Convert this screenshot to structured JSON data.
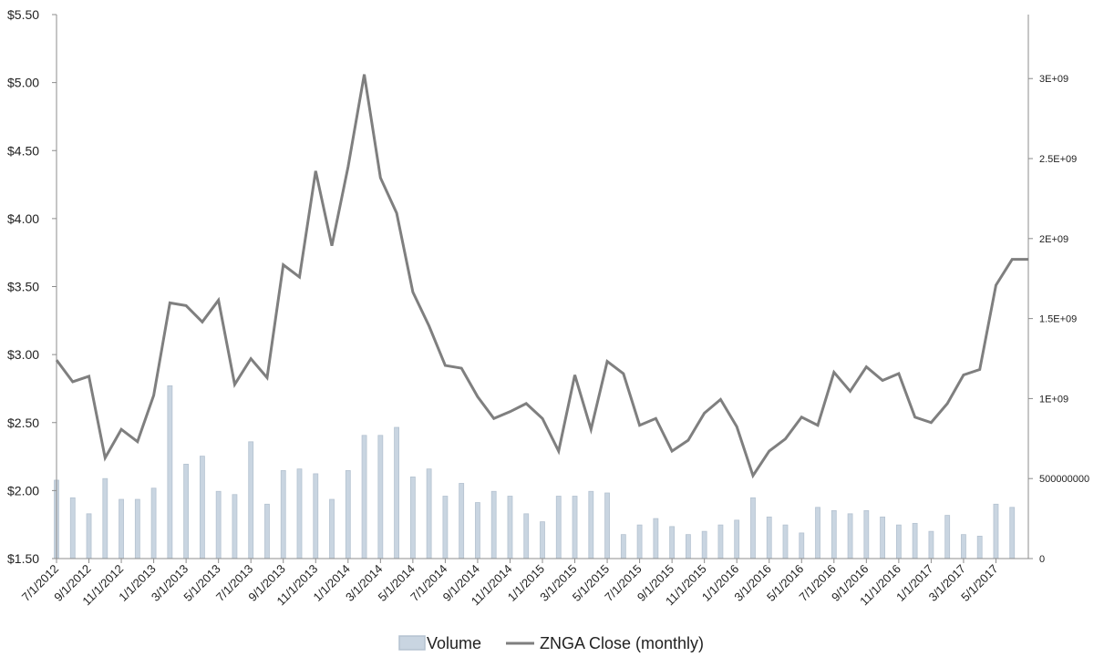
{
  "chart_data": {
    "type": "bar+line",
    "colors": {
      "volume_fill": "#c9d5e1",
      "volume_stroke": "#b4c2d0",
      "close_line": "#7f7f7f",
      "axis": "#8c8c8c"
    },
    "x": [
      "7/1/2012",
      "8/1/2012",
      "9/1/2012",
      "10/1/2012",
      "11/1/2012",
      "12/1/2012",
      "1/1/2013",
      "2/1/2013",
      "3/1/2013",
      "4/1/2013",
      "5/1/2013",
      "6/1/2013",
      "7/1/2013",
      "8/1/2013",
      "9/1/2013",
      "10/1/2013",
      "11/1/2013",
      "12/1/2013",
      "1/1/2014",
      "2/1/2014",
      "3/1/2014",
      "4/1/2014",
      "5/1/2014",
      "6/1/2014",
      "7/1/2014",
      "8/1/2014",
      "9/1/2014",
      "10/1/2014",
      "11/1/2014",
      "12/1/2014",
      "1/1/2015",
      "2/1/2015",
      "3/1/2015",
      "4/1/2015",
      "5/1/2015",
      "6/1/2015",
      "7/1/2015",
      "8/1/2015",
      "9/1/2015",
      "10/1/2015",
      "11/1/2015",
      "12/1/2015",
      "1/1/2016",
      "2/1/2016",
      "3/1/2016",
      "4/1/2016",
      "5/1/2016",
      "6/1/2016",
      "7/1/2016",
      "8/1/2016",
      "9/1/2016",
      "10/1/2016",
      "11/1/2016",
      "12/1/2016",
      "1/1/2017",
      "2/1/2017",
      "3/1/2017",
      "4/1/2017",
      "5/1/2017",
      "6/1/2017",
      "7/1/2017"
    ],
    "x_tick_labels": [
      "7/1/2012",
      "9/1/2012",
      "11/1/2012",
      "1/1/2013",
      "3/1/2013",
      "5/1/2013",
      "7/1/2013",
      "9/1/2013",
      "11/1/2013",
      "1/1/2014",
      "3/1/2014",
      "5/1/2014",
      "7/1/2014",
      "9/1/2014",
      "11/1/2014",
      "1/1/2015",
      "3/1/2015",
      "5/1/2015",
      "7/1/2015",
      "9/1/2015",
      "11/1/2015",
      "1/1/2016",
      "3/1/2016",
      "5/1/2016",
      "7/1/2016",
      "9/1/2016",
      "11/1/2016",
      "1/1/2017",
      "3/1/2017",
      "5/1/2017"
    ],
    "series": [
      {
        "name": "Volume",
        "type": "bar",
        "axis": "right",
        "values": [
          490000000,
          380000000,
          280000000,
          500000000,
          370000000,
          370000000,
          440000000,
          1080000000,
          590000000,
          640000000,
          420000000,
          400000000,
          730000000,
          340000000,
          550000000,
          560000000,
          530000000,
          370000000,
          550000000,
          770000000,
          770000000,
          820000000,
          510000000,
          560000000,
          390000000,
          470000000,
          350000000,
          420000000,
          390000000,
          280000000,
          230000000,
          390000000,
          390000000,
          420000000,
          410000000,
          150000000,
          210000000,
          250000000,
          200000000,
          150000000,
          170000000,
          210000000,
          240000000,
          380000000,
          260000000,
          210000000,
          160000000,
          320000000,
          300000000,
          280000000,
          300000000,
          260000000,
          210000000,
          220000000,
          170000000,
          270000000,
          150000000,
          140000000,
          340000000,
          320000000,
          0
        ]
      },
      {
        "name": "ZNGA Close (monthly)",
        "type": "line",
        "axis": "left",
        "values": [
          2.96,
          2.8,
          2.84,
          2.24,
          2.45,
          2.36,
          2.7,
          3.38,
          3.36,
          3.24,
          3.4,
          2.78,
          2.97,
          2.83,
          3.66,
          3.57,
          4.35,
          3.8,
          4.38,
          5.06,
          4.3,
          4.04,
          3.46,
          3.21,
          2.92,
          2.9,
          2.69,
          2.53,
          2.58,
          2.64,
          2.53,
          2.29,
          2.85,
          2.45,
          2.95,
          2.86,
          2.48,
          2.53,
          2.29,
          2.37,
          2.57,
          2.67,
          2.47,
          2.11,
          2.29,
          2.38,
          2.54,
          2.48,
          2.87,
          2.73,
          2.91,
          2.81,
          2.86,
          2.54,
          2.5,
          2.64,
          2.85,
          2.89,
          3.51,
          3.7,
          3.7
        ]
      }
    ],
    "y_left": {
      "ylim": [
        1.5,
        5.5
      ],
      "tick_values": [
        1.5,
        2.0,
        2.5,
        3.0,
        3.5,
        4.0,
        4.5,
        5.0,
        5.5
      ],
      "tick_labels": [
        "$1.50",
        "$2.00",
        "$2.50",
        "$3.00",
        "$3.50",
        "$4.00",
        "$4.50",
        "$5.00",
        "$5.50"
      ]
    },
    "y_right": {
      "ylim": [
        0,
        3400000000
      ],
      "tick_values": [
        0,
        500000000,
        1000000000,
        1500000000,
        2000000000,
        2500000000,
        3000000000
      ],
      "tick_labels": [
        "0",
        "500000000",
        "1E+09",
        "1.5E+09",
        "2E+09",
        "2.5E+09",
        "3E+09"
      ]
    },
    "grid": false,
    "legend_position": "bottom",
    "legend": [
      "Volume",
      "ZNGA Close (monthly)"
    ],
    "title": "",
    "xlabel": "",
    "ylabel": ""
  }
}
